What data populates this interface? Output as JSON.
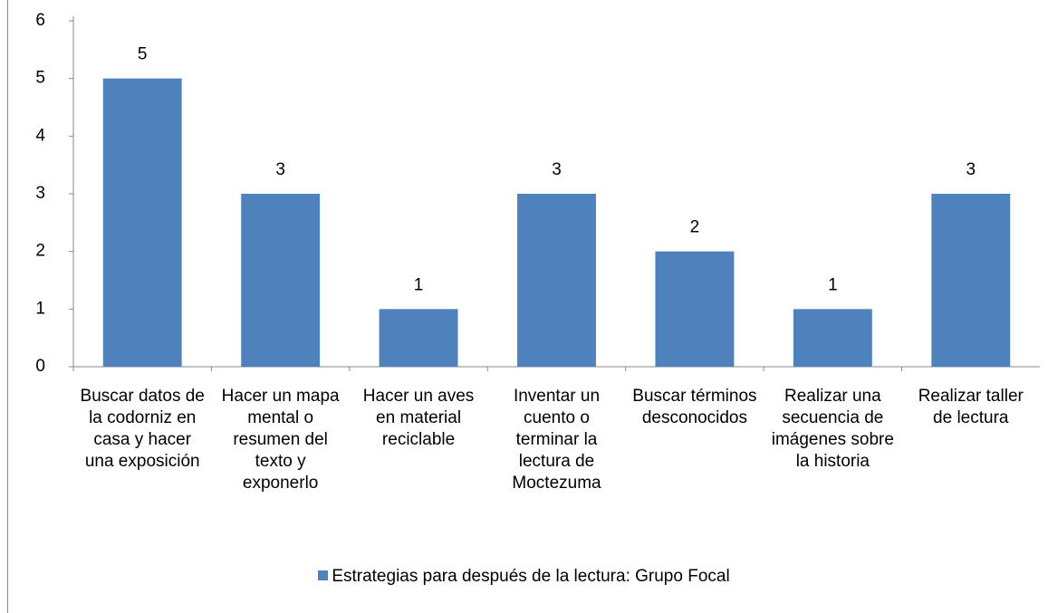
{
  "chart_data": {
    "type": "bar",
    "categories": [
      "Buscar datos de la codorniz en casa y hacer una exposición",
      "Hacer un mapa mental o resumen del texto y exponerlo",
      "Hacer un aves en material reciclable",
      "Inventar un cuento o terminar la lectura de Moctezuma",
      "Buscar términos desconocidos",
      "Realizar una secuencia de imágenes sobre la historia",
      "Realizar taller de lectura"
    ],
    "series": [
      {
        "name": "Estrategias para después de la lectura: Grupo Focal",
        "color": "#4f81bd",
        "values": [
          5,
          3,
          1,
          3,
          2,
          1,
          3
        ]
      }
    ],
    "ylim": [
      0,
      6
    ],
    "yticks": [
      0,
      1,
      2,
      3,
      4,
      5,
      6
    ],
    "legend": "bottom"
  }
}
